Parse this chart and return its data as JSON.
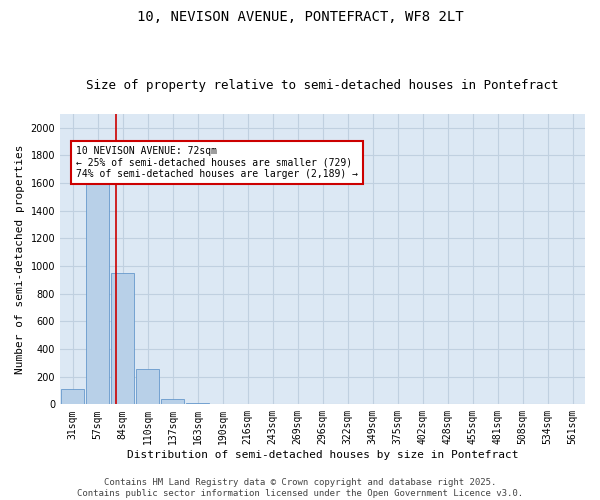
{
  "title_line1": "10, NEVISON AVENUE, PONTEFRACT, WF8 2LT",
  "title_line2": "Size of property relative to semi-detached houses in Pontefract",
  "xlabel": "Distribution of semi-detached houses by size in Pontefract",
  "ylabel": "Number of semi-detached properties",
  "categories": [
    "31sqm",
    "57sqm",
    "84sqm",
    "110sqm",
    "137sqm",
    "163sqm",
    "190sqm",
    "216sqm",
    "243sqm",
    "269sqm",
    "296sqm",
    "322sqm",
    "349sqm",
    "375sqm",
    "402sqm",
    "428sqm",
    "455sqm",
    "481sqm",
    "508sqm",
    "534sqm",
    "561sqm"
  ],
  "values": [
    110,
    1600,
    950,
    255,
    35,
    12,
    5,
    0,
    0,
    0,
    0,
    0,
    0,
    0,
    0,
    0,
    0,
    0,
    0,
    0,
    0
  ],
  "bar_color": "#b8d0e8",
  "bar_edge_color": "#6699cc",
  "bar_edge_width": 0.6,
  "property_line_x": 1.72,
  "annotation_text": "10 NEVISON AVENUE: 72sqm\n← 25% of semi-detached houses are smaller (729)\n74% of semi-detached houses are larger (2,189) →",
  "annotation_box_color": "#ffffff",
  "annotation_box_edge_color": "#cc0000",
  "annotation_line_color": "#cc0000",
  "ylim": [
    0,
    2100
  ],
  "yticks": [
    0,
    200,
    400,
    600,
    800,
    1000,
    1200,
    1400,
    1600,
    1800,
    2000
  ],
  "grid_color": "#c0d0e0",
  "plot_bg_color": "#dce8f4",
  "footer_text": "Contains HM Land Registry data © Crown copyright and database right 2025.\nContains public sector information licensed under the Open Government Licence v3.0.",
  "title_fontsize": 10,
  "subtitle_fontsize": 9,
  "axis_label_fontsize": 8,
  "tick_fontsize": 7,
  "annotation_fontsize": 7,
  "footer_fontsize": 6.5
}
